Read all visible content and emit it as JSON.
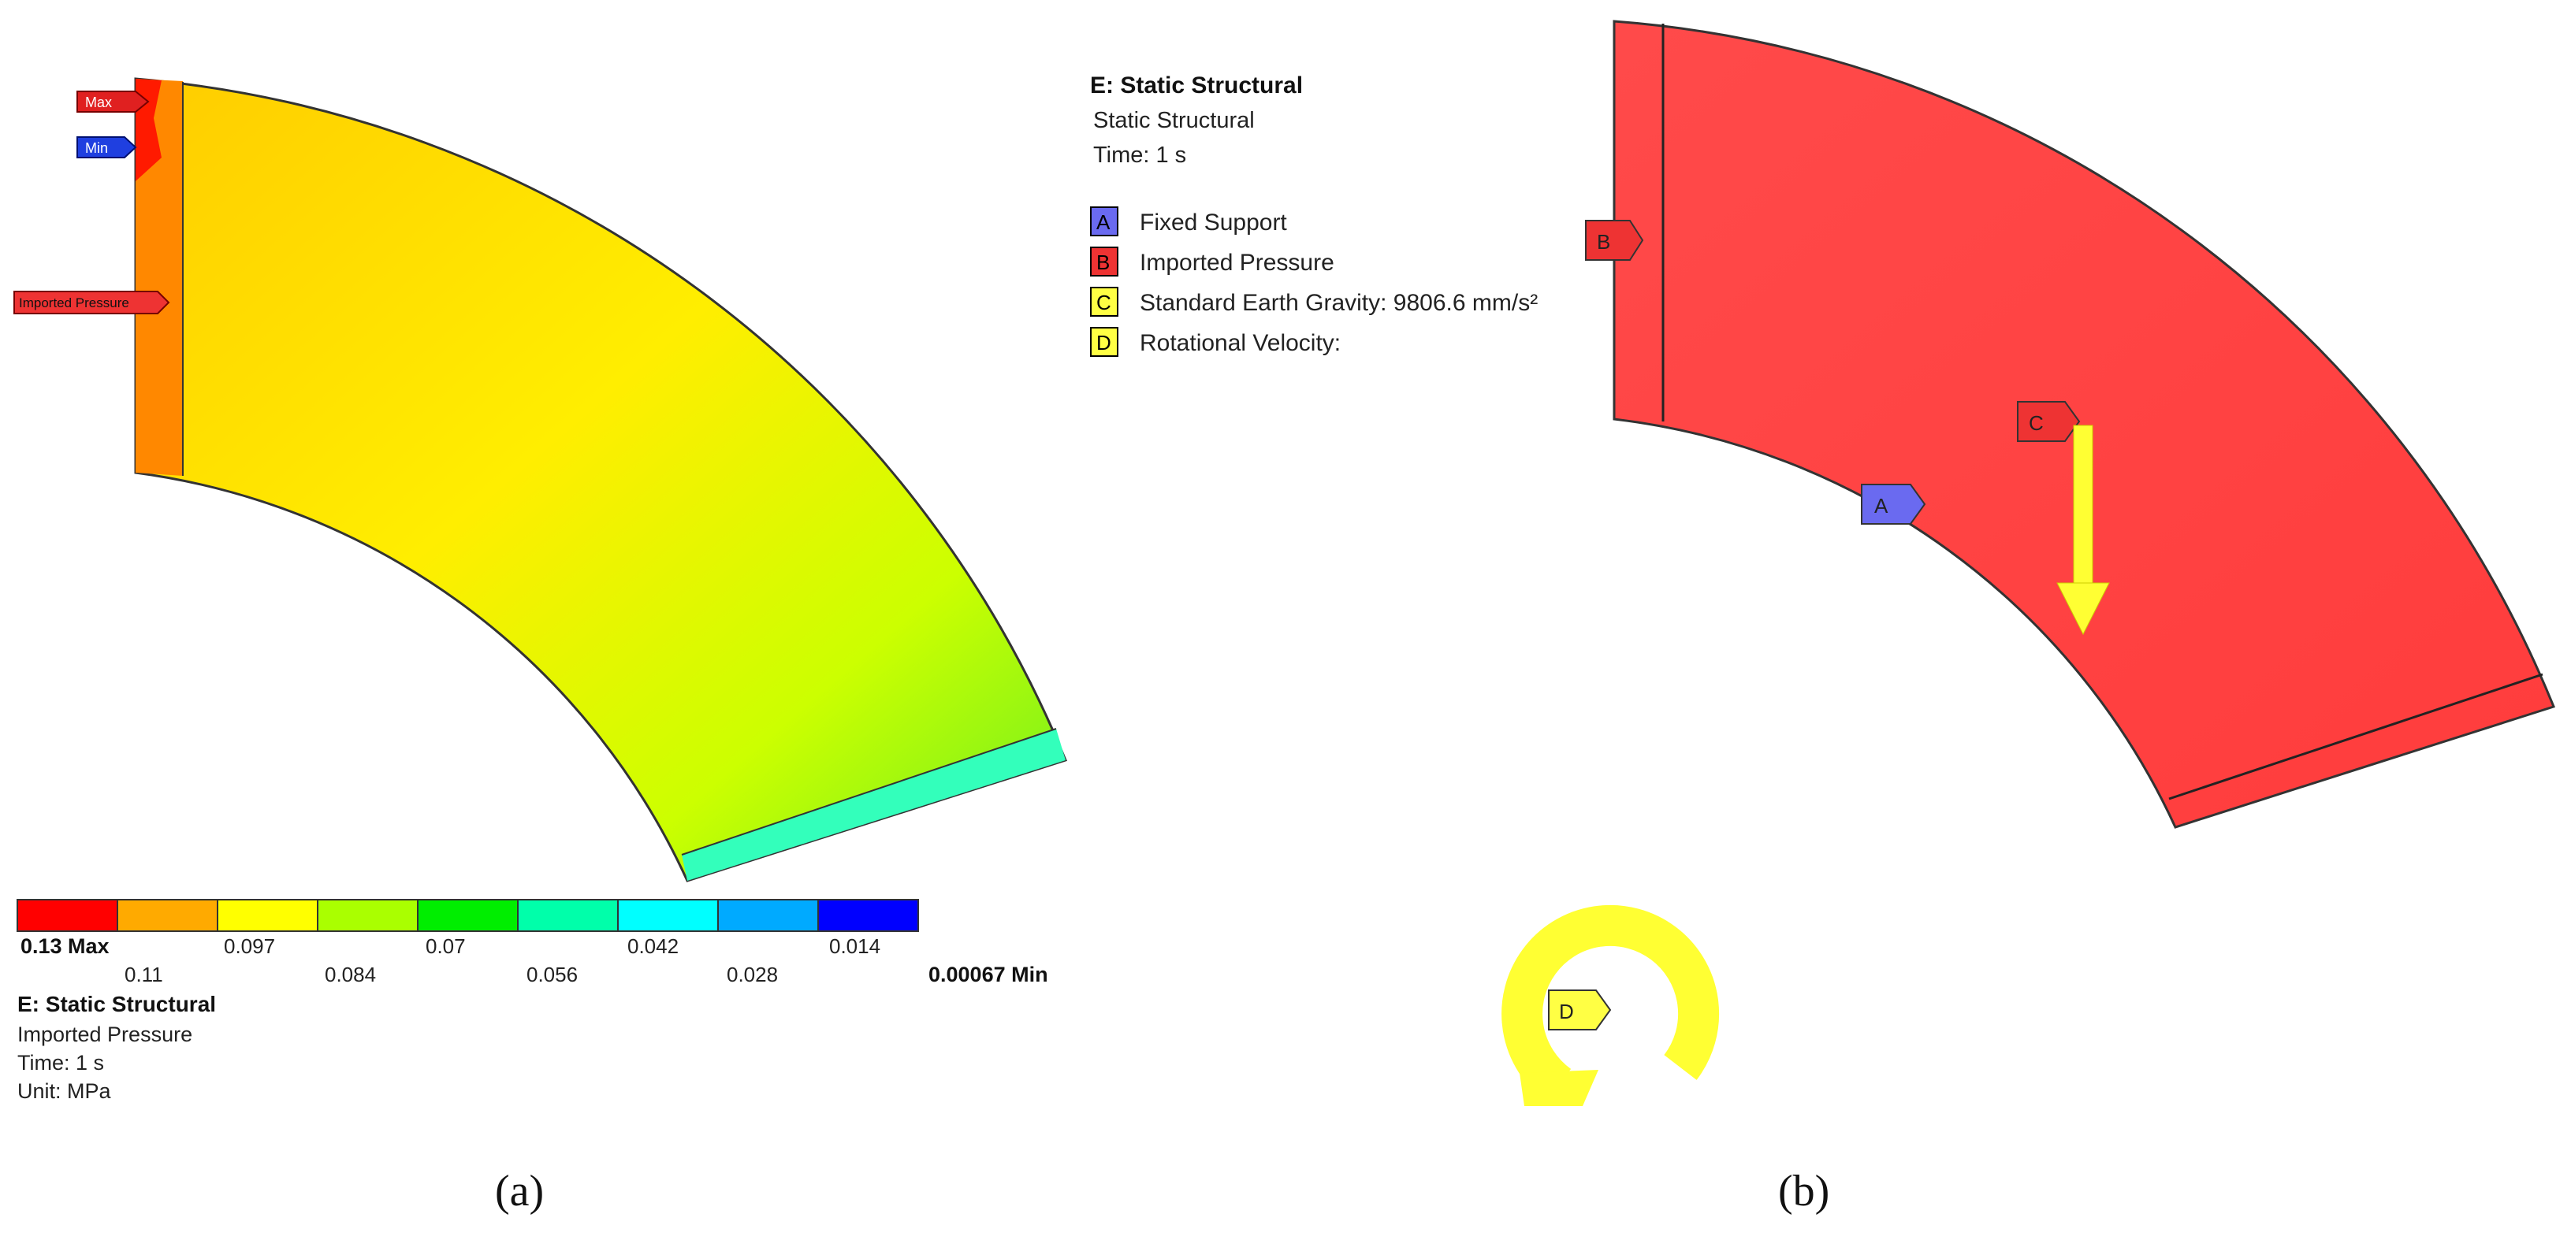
{
  "panel_a": {
    "tags": {
      "max": "Max",
      "min": "Min",
      "imported_pressure": "Imported Pressure"
    },
    "colorbar": {
      "colors": [
        "#ff0000",
        "#ffaa00",
        "#ffff00",
        "#aaff00",
        "#00ee00",
        "#00ffaa",
        "#00ffff",
        "#00aaff",
        "#0000ff"
      ],
      "max_label": "0.13 Max",
      "min_label": "0.00067 Min",
      "upper_ticks": [
        "0.097",
        "0.07",
        "0.042",
        "0.014"
      ],
      "lower_ticks": [
        "0.11",
        "0.084",
        "0.056",
        "0.028"
      ]
    },
    "info": {
      "title": "E: Static Structural",
      "result": "Imported Pressure",
      "time": "Time: 1  s",
      "unit": "Unit: MPa"
    },
    "caption": "(a)"
  },
  "panel_b": {
    "header": {
      "title": "E: Static Structural",
      "subtitle": "Static Structural",
      "time": "Time: 1  s"
    },
    "legend": [
      {
        "letter": "A",
        "label": "Fixed Support",
        "color": "#6a6af0"
      },
      {
        "letter": "B",
        "label": "Imported Pressure",
        "color": "#ee3333"
      },
      {
        "letter": "C",
        "label": "Standard Earth Gravity: 9806.6 mm/s²",
        "color": "#ffff44"
      },
      {
        "letter": "D",
        "label": "Rotational Velocity:",
        "color": "#ffff44"
      }
    ],
    "tags": {
      "a": "A",
      "b": "B",
      "c": "C",
      "d": "D"
    },
    "body_color": "#ff4444",
    "arrow_color": "#ffff33",
    "caption": "(b)"
  }
}
